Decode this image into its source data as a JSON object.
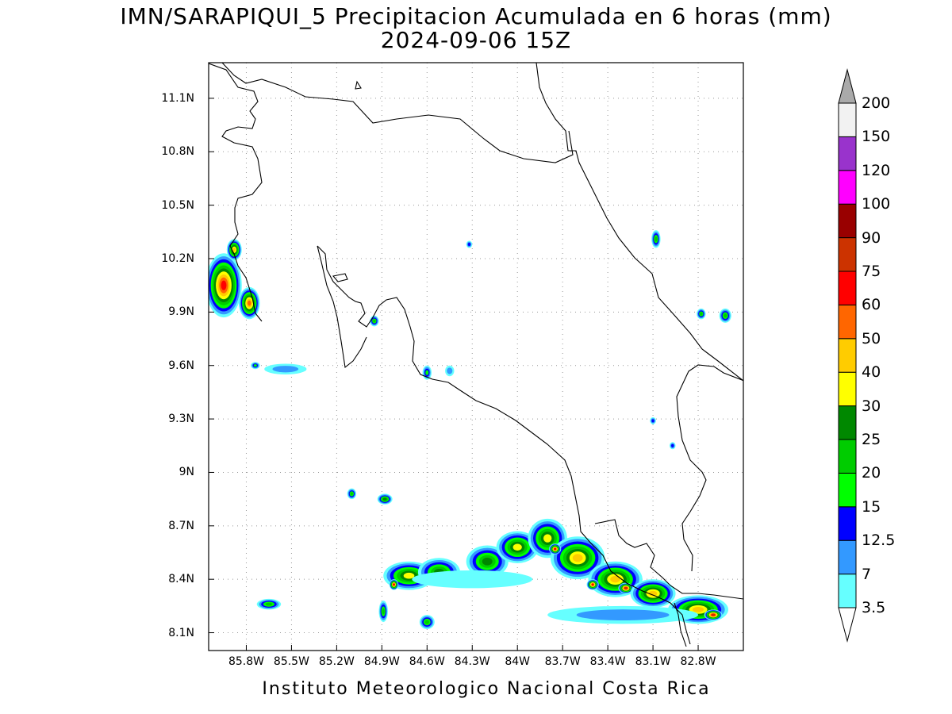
{
  "title": {
    "line1": "IMN/SARAPIQUI_5 Precipitacion Acumulada en 6 horas (mm)",
    "line2": "2024-09-06 15Z"
  },
  "footer": "Instituto Meteorologico Nacional Costa Rica",
  "map": {
    "lon_range": [
      -86.05,
      -82.5
    ],
    "lat_range": [
      8.0,
      11.3
    ],
    "grid": "dotted",
    "lat_ticks": [
      {
        "value": 11.1,
        "label": "11.1N"
      },
      {
        "value": 10.8,
        "label": "10.8N"
      },
      {
        "value": 10.5,
        "label": "10.5N"
      },
      {
        "value": 10.2,
        "label": "10.2N"
      },
      {
        "value": 9.9,
        "label": "9.9N"
      },
      {
        "value": 9.6,
        "label": "9.6N"
      },
      {
        "value": 9.3,
        "label": "9.3N"
      },
      {
        "value": 9.0,
        "label": "9N"
      },
      {
        "value": 8.7,
        "label": "8.7N"
      },
      {
        "value": 8.4,
        "label": "8.4N"
      },
      {
        "value": 8.1,
        "label": "8.1N"
      }
    ],
    "lon_ticks": [
      {
        "value": -85.8,
        "label": "85.8W"
      },
      {
        "value": -85.5,
        "label": "85.5W"
      },
      {
        "value": -85.2,
        "label": "85.2W"
      },
      {
        "value": -84.9,
        "label": "84.9W"
      },
      {
        "value": -84.6,
        "label": "84.6W"
      },
      {
        "value": -84.3,
        "label": "84.3W"
      },
      {
        "value": -84.0,
        "label": "84W"
      },
      {
        "value": -83.7,
        "label": "83.7W"
      },
      {
        "value": -83.4,
        "label": "83.4W"
      },
      {
        "value": -83.1,
        "label": "83.1W"
      },
      {
        "value": -82.8,
        "label": "82.8W"
      }
    ]
  },
  "legend": {
    "levels": [
      "3.5",
      "7",
      "12.5",
      "15",
      "20",
      "25",
      "30",
      "40",
      "50",
      "60",
      "75",
      "90",
      "100",
      "120",
      "150",
      "200"
    ],
    "colors": [
      "#66ffff",
      "#3399ff",
      "#0000ff",
      "#00ff00",
      "#00cc00",
      "#008800",
      "#ffff00",
      "#ffcc00",
      "#ff6600",
      "#ff0000",
      "#cc3300",
      "#990000",
      "#ff00ff",
      "#9933cc",
      "#f2f2f2",
      "#aaaaaa"
    ]
  },
  "precip_cells": [
    {
      "lon": -85.95,
      "lat": 10.05,
      "rx": 0.12,
      "ry": 0.18,
      "level": 9
    },
    {
      "lon": -85.88,
      "lat": 10.25,
      "rx": 0.05,
      "ry": 0.06,
      "level": 7
    },
    {
      "lon": -85.78,
      "lat": 9.95,
      "rx": 0.07,
      "ry": 0.09,
      "level": 8
    },
    {
      "lon": -85.74,
      "lat": 9.6,
      "rx": 0.03,
      "ry": 0.02,
      "level": 3
    },
    {
      "lon": -85.54,
      "lat": 9.58,
      "rx": 0.14,
      "ry": 0.03,
      "level": 1
    },
    {
      "lon": -84.95,
      "lat": 9.85,
      "rx": 0.03,
      "ry": 0.03,
      "level": 4
    },
    {
      "lon": -84.6,
      "lat": 9.56,
      "rx": 0.03,
      "ry": 0.04,
      "level": 3
    },
    {
      "lon": -84.45,
      "lat": 9.57,
      "rx": 0.03,
      "ry": 0.03,
      "level": 1
    },
    {
      "lon": -84.32,
      "lat": 10.28,
      "rx": 0.02,
      "ry": 0.02,
      "level": 2
    },
    {
      "lon": -83.08,
      "lat": 10.31,
      "rx": 0.03,
      "ry": 0.05,
      "level": 4
    },
    {
      "lon": -82.78,
      "lat": 9.89,
      "rx": 0.03,
      "ry": 0.03,
      "level": 4
    },
    {
      "lon": -82.62,
      "lat": 9.88,
      "rx": 0.04,
      "ry": 0.04,
      "level": 4
    },
    {
      "lon": -83.1,
      "lat": 9.29,
      "rx": 0.02,
      "ry": 0.02,
      "level": 2
    },
    {
      "lon": -82.97,
      "lat": 9.15,
      "rx": 0.02,
      "ry": 0.02,
      "level": 2
    },
    {
      "lon": -85.1,
      "lat": 8.88,
      "rx": 0.03,
      "ry": 0.03,
      "level": 4
    },
    {
      "lon": -84.88,
      "lat": 8.85,
      "rx": 0.05,
      "ry": 0.03,
      "level": 5
    },
    {
      "lon": -85.65,
      "lat": 8.26,
      "rx": 0.08,
      "ry": 0.03,
      "level": 4
    },
    {
      "lon": -84.89,
      "lat": 8.22,
      "rx": 0.03,
      "ry": 0.06,
      "level": 4
    },
    {
      "lon": -84.6,
      "lat": 8.16,
      "rx": 0.05,
      "ry": 0.04,
      "level": 4
    },
    {
      "lon": -84.72,
      "lat": 8.42,
      "rx": 0.17,
      "ry": 0.08,
      "level": 6
    },
    {
      "lon": -84.82,
      "lat": 8.37,
      "rx": 0.03,
      "ry": 0.03,
      "level": 9
    },
    {
      "lon": -84.52,
      "lat": 8.44,
      "rx": 0.14,
      "ry": 0.08,
      "level": 5
    },
    {
      "lon": -84.2,
      "lat": 8.5,
      "rx": 0.14,
      "ry": 0.09,
      "level": 5
    },
    {
      "lon": -84.0,
      "lat": 8.58,
      "rx": 0.14,
      "ry": 0.09,
      "level": 6
    },
    {
      "lon": -83.8,
      "lat": 8.63,
      "rx": 0.13,
      "ry": 0.11,
      "level": 6
    },
    {
      "lon": -83.6,
      "lat": 8.52,
      "rx": 0.18,
      "ry": 0.12,
      "level": 7
    },
    {
      "lon": -83.35,
      "lat": 8.4,
      "rx": 0.18,
      "ry": 0.1,
      "level": 7
    },
    {
      "lon": -83.28,
      "lat": 8.35,
      "rx": 0.05,
      "ry": 0.03,
      "level": 10
    },
    {
      "lon": -83.1,
      "lat": 8.32,
      "rx": 0.15,
      "ry": 0.08,
      "level": 7
    },
    {
      "lon": -82.8,
      "lat": 8.23,
      "rx": 0.2,
      "ry": 0.08,
      "level": 7
    },
    {
      "lon": -82.7,
      "lat": 8.2,
      "rx": 0.06,
      "ry": 0.03,
      "level": 10
    },
    {
      "lon": -83.75,
      "lat": 8.57,
      "rx": 0.04,
      "ry": 0.03,
      "level": 9
    },
    {
      "lon": -83.5,
      "lat": 8.37,
      "rx": 0.04,
      "ry": 0.03,
      "level": 9
    },
    {
      "lon": -84.3,
      "lat": 8.4,
      "rx": 0.4,
      "ry": 0.05,
      "level": 0
    },
    {
      "lon": -83.3,
      "lat": 8.2,
      "rx": 0.5,
      "ry": 0.05,
      "level": 1
    }
  ]
}
